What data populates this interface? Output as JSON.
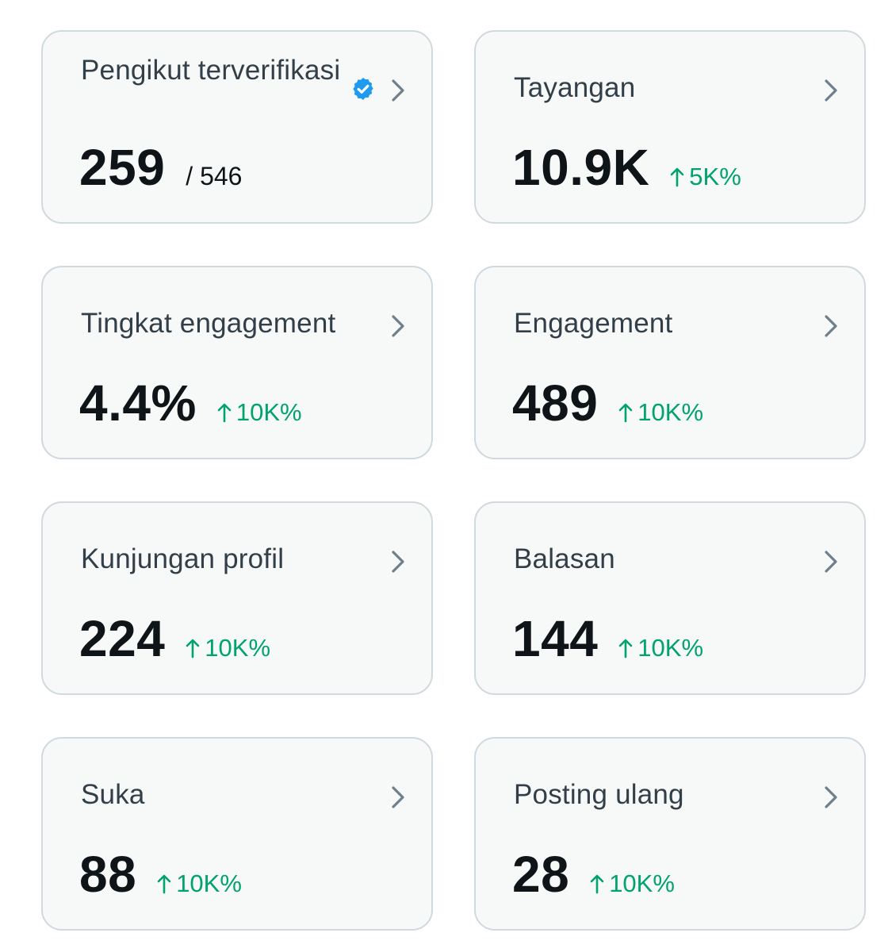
{
  "colors": {
    "card_bg": "#f7f9f9",
    "card_border": "#cfd9de",
    "title": "#333f48",
    "value": "#0f1419",
    "delta_positive": "#00a36c",
    "verified_badge": "#1d9bf0",
    "chevron": "#6f7f8b"
  },
  "cards": [
    {
      "title": "Pengikut terverifikasi",
      "value": "259",
      "total": "/ 546",
      "verified_icon": "verified-badge-icon"
    },
    {
      "title": "Tayangan",
      "value": "10.9K",
      "delta": "5K%"
    },
    {
      "title": "Tingkat engagement",
      "value": "4.4%",
      "delta": "10K%"
    },
    {
      "title": "Engagement",
      "value": "489",
      "delta": "10K%"
    },
    {
      "title": "Kunjungan profil",
      "value": "224",
      "delta": "10K%"
    },
    {
      "title": "Balasan",
      "value": "144",
      "delta": "10K%"
    },
    {
      "title": "Suka",
      "value": "88",
      "delta": "10K%"
    },
    {
      "title": "Posting ulang",
      "value": "28",
      "delta": "10K%"
    }
  ]
}
